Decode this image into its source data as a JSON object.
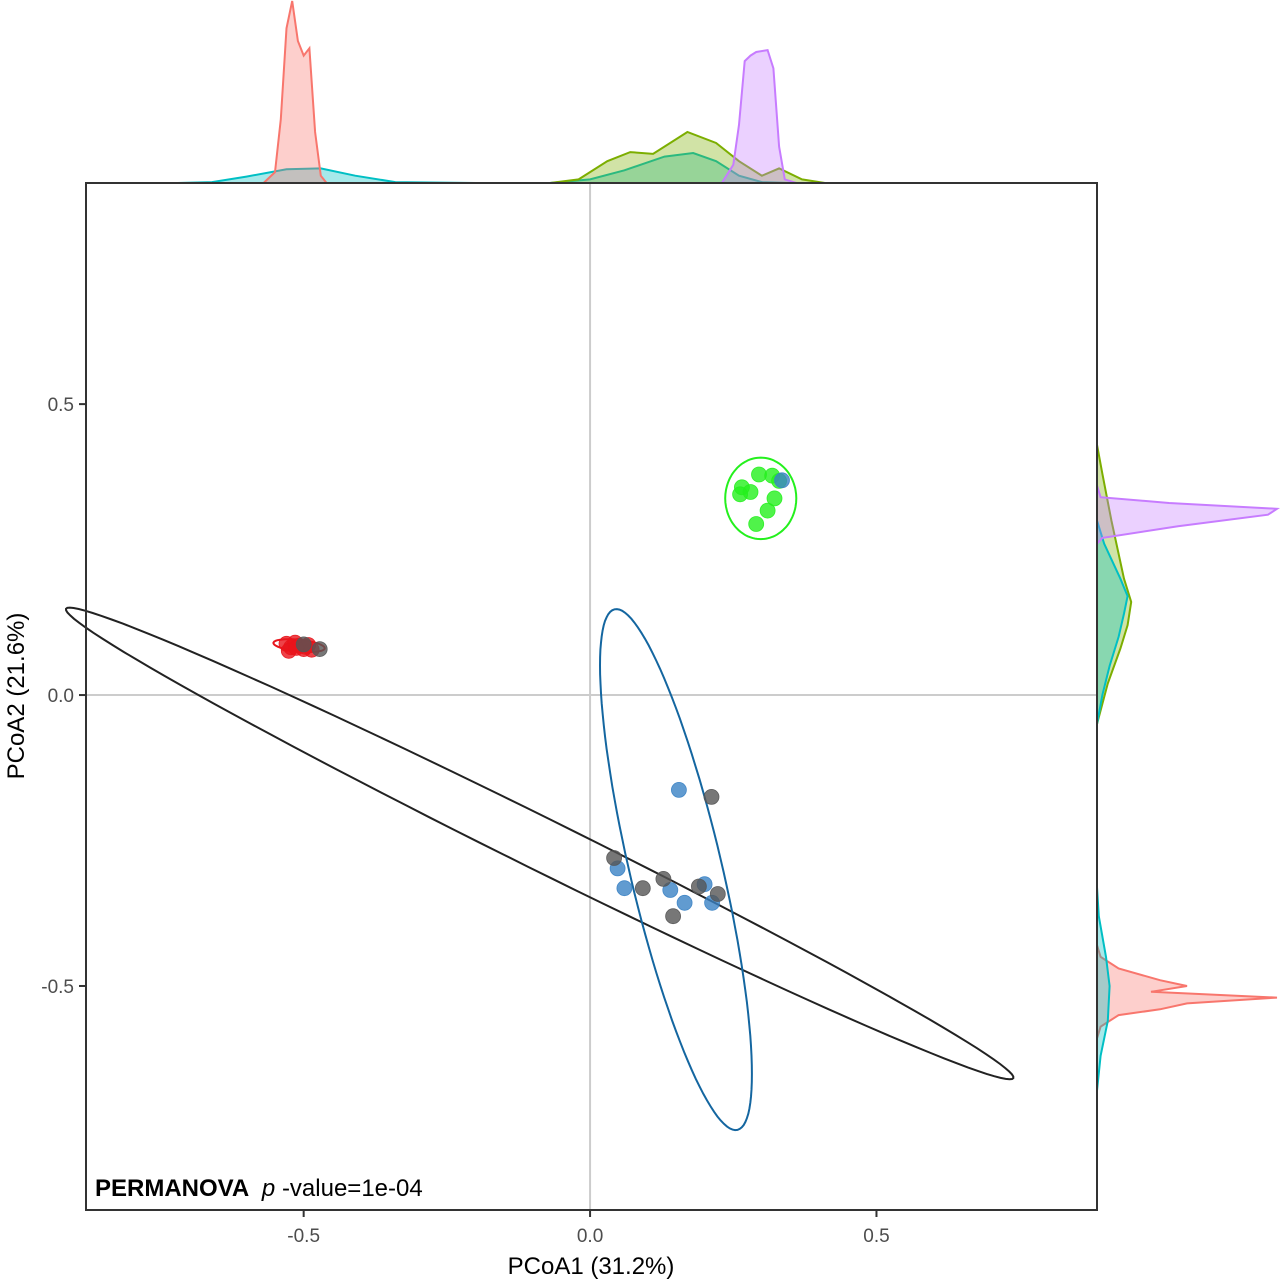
{
  "chart_data": {
    "type": "scatter",
    "title": "",
    "xlabel": "PCoA1 (31.2%)",
    "ylabel": "PCoA2 (21.6%)",
    "xlim": [
      -0.88,
      0.885
    ],
    "ylim": [
      -0.885,
      0.88
    ],
    "x_ticks": [
      "-0.5",
      "0.0",
      "0.5"
    ],
    "x_tick_values": [
      -0.5,
      0.0,
      0.5
    ],
    "y_ticks": [
      "-0.5",
      "0.0",
      "0.5"
    ],
    "y_tick_values": [
      -0.5,
      0.0,
      0.5
    ],
    "grid": "reference lines at x=0 and y=0",
    "legend": "none",
    "annotation": {
      "bold": "PERMANOVA",
      "italic": "p",
      "rest": "-value=1e-04"
    },
    "colors": {
      "red": "#e8141b",
      "green": "#24f01d",
      "blue": "#3a82c4",
      "black": "#555555",
      "ellipse_black": "#222222",
      "ellipse_blue": "#1466a0",
      "dens_red": "#f8766d",
      "dens_olive": "#7cae00",
      "dens_cyan": "#00bfc4",
      "dens_purple": "#c77cff"
    },
    "series": [
      {
        "color_key": "red",
        "points": [
          [
            -0.53,
            0.088
          ],
          [
            -0.522,
            0.082
          ],
          [
            -0.515,
            0.09
          ],
          [
            -0.508,
            0.085
          ],
          [
            -0.5,
            0.079
          ],
          [
            -0.492,
            0.086
          ],
          [
            -0.486,
            0.078
          ],
          [
            -0.526,
            0.076
          ],
          [
            -0.513,
            0.081
          ],
          [
            -0.497,
            0.083
          ]
        ]
      },
      {
        "color_key": "green",
        "points": [
          [
            0.295,
            0.379
          ],
          [
            0.318,
            0.377
          ],
          [
            0.265,
            0.357
          ],
          [
            0.28,
            0.349
          ],
          [
            0.262,
            0.345
          ],
          [
            0.33,
            0.368
          ],
          [
            0.322,
            0.338
          ],
          [
            0.31,
            0.317
          ],
          [
            0.29,
            0.294
          ]
        ]
      },
      {
        "color_key": "blue",
        "points": [
          [
            0.155,
            -0.163
          ],
          [
            0.048,
            -0.298
          ],
          [
            0.06,
            -0.332
          ],
          [
            0.14,
            -0.335
          ],
          [
            0.165,
            -0.357
          ],
          [
            0.2,
            -0.325
          ],
          [
            0.213,
            -0.357
          ],
          [
            0.335,
            0.369
          ]
        ]
      },
      {
        "color_key": "black",
        "points": [
          [
            -0.5,
            0.087
          ],
          [
            -0.472,
            0.079
          ],
          [
            0.042,
            -0.28
          ],
          [
            0.092,
            -0.332
          ],
          [
            0.128,
            -0.316
          ],
          [
            0.145,
            -0.38
          ],
          [
            0.19,
            -0.329
          ],
          [
            0.223,
            -0.342
          ],
          [
            0.212,
            -0.175
          ]
        ]
      }
    ],
    "ellipses": [
      {
        "color_key": "ellipse_black",
        "cx": -0.088,
        "cy": -0.255,
        "rx": 0.92,
        "ry": 0.045,
        "angle_deg": -26
      },
      {
        "color_key": "ellipse_blue",
        "cx": 0.15,
        "cy": -0.3,
        "rx": 0.08,
        "ry": 0.46,
        "angle_deg": 13.5
      },
      {
        "color_key": "green",
        "cx": 0.298,
        "cy": 0.338,
        "rx": 0.062,
        "ry": 0.07,
        "angle_deg": 0
      },
      {
        "color_key": "red",
        "cx": -0.508,
        "cy": 0.085,
        "rx": 0.045,
        "ry": 0.01,
        "angle_deg": -6
      }
    ],
    "top_density": [
      {
        "color_key": "dens_cyan",
        "points": [
          [
            -0.72,
            0
          ],
          [
            -0.66,
            0.005
          ],
          [
            -0.6,
            0.035
          ],
          [
            -0.53,
            0.075
          ],
          [
            -0.47,
            0.08
          ],
          [
            -0.41,
            0.04
          ],
          [
            -0.34,
            0.005
          ],
          [
            -0.2,
            0
          ],
          [
            -0.07,
            0
          ],
          [
            0.0,
            0.02
          ],
          [
            0.06,
            0.07
          ],
          [
            0.13,
            0.145
          ],
          [
            0.18,
            0.165
          ],
          [
            0.22,
            0.12
          ],
          [
            0.26,
            0.04
          ],
          [
            0.3,
            0.005
          ],
          [
            0.35,
            0
          ]
        ]
      },
      {
        "color_key": "dens_olive",
        "points": [
          [
            -0.07,
            0
          ],
          [
            -0.02,
            0.02
          ],
          [
            0.03,
            0.12
          ],
          [
            0.07,
            0.17
          ],
          [
            0.11,
            0.16
          ],
          [
            0.17,
            0.28
          ],
          [
            0.22,
            0.22
          ],
          [
            0.26,
            0.12
          ],
          [
            0.3,
            0.04
          ],
          [
            0.33,
            0.08
          ],
          [
            0.37,
            0.02
          ],
          [
            0.41,
            0
          ]
        ]
      },
      {
        "color_key": "dens_red",
        "points": [
          [
            -0.57,
            0
          ],
          [
            -0.55,
            0.06
          ],
          [
            -0.54,
            0.35
          ],
          [
            -0.53,
            0.85
          ],
          [
            -0.52,
            1.0
          ],
          [
            -0.51,
            0.78
          ],
          [
            -0.5,
            0.7
          ],
          [
            -0.49,
            0.74
          ],
          [
            -0.48,
            0.28
          ],
          [
            -0.47,
            0.04
          ],
          [
            -0.46,
            0
          ]
        ]
      },
      {
        "color_key": "dens_purple",
        "points": [
          [
            0.23,
            0
          ],
          [
            0.25,
            0.1
          ],
          [
            0.26,
            0.32
          ],
          [
            0.27,
            0.67
          ],
          [
            0.28,
            0.7
          ],
          [
            0.29,
            0.72
          ],
          [
            0.31,
            0.73
          ],
          [
            0.32,
            0.63
          ],
          [
            0.33,
            0.2
          ],
          [
            0.34,
            0.02
          ],
          [
            0.36,
            0
          ]
        ]
      }
    ],
    "right_density": [
      {
        "color_key": "dens_red",
        "points": [
          [
            -0.43,
            0
          ],
          [
            -0.45,
            0.02
          ],
          [
            -0.47,
            0.12
          ],
          [
            -0.49,
            0.35
          ],
          [
            -0.5,
            0.5
          ],
          [
            -0.51,
            0.3
          ],
          [
            -0.52,
            1.0
          ],
          [
            -0.53,
            0.5
          ],
          [
            -0.54,
            0.35
          ],
          [
            -0.55,
            0.12
          ],
          [
            -0.57,
            0.02
          ],
          [
            -0.59,
            0
          ]
        ]
      },
      {
        "color_key": "dens_cyan",
        "points": [
          [
            -0.33,
            0
          ],
          [
            -0.38,
            0.01
          ],
          [
            -0.45,
            0.05
          ],
          [
            -0.5,
            0.07
          ],
          [
            -0.56,
            0.06
          ],
          [
            -0.62,
            0.02
          ],
          [
            -0.68,
            0
          ]
        ]
      },
      {
        "color_key": "dens_olive",
        "points": [
          [
            0.43,
            0
          ],
          [
            0.38,
            0.03
          ],
          [
            0.3,
            0.08
          ],
          [
            0.2,
            0.15
          ],
          [
            0.16,
            0.19
          ],
          [
            0.12,
            0.17
          ],
          [
            0.08,
            0.13
          ],
          [
            0.02,
            0.06
          ],
          [
            -0.05,
            0
          ]
        ]
      },
      {
        "color_key": "dens_cyan",
        "points": [
          [
            0.3,
            0
          ],
          [
            0.26,
            0.04
          ],
          [
            0.2,
            0.13
          ],
          [
            0.17,
            0.17
          ],
          [
            0.14,
            0.15
          ],
          [
            0.1,
            0.12
          ],
          [
            0.05,
            0.07
          ],
          [
            0.0,
            0.03
          ],
          [
            -0.05,
            0
          ]
        ]
      },
      {
        "color_key": "dens_purple",
        "points": [
          [
            0.26,
            0
          ],
          [
            0.27,
            0.03
          ],
          [
            0.29,
            0.45
          ],
          [
            0.31,
            0.95
          ],
          [
            0.32,
            1.0
          ],
          [
            0.33,
            0.4
          ],
          [
            0.34,
            0.02
          ],
          [
            0.36,
            0
          ]
        ]
      }
    ]
  }
}
